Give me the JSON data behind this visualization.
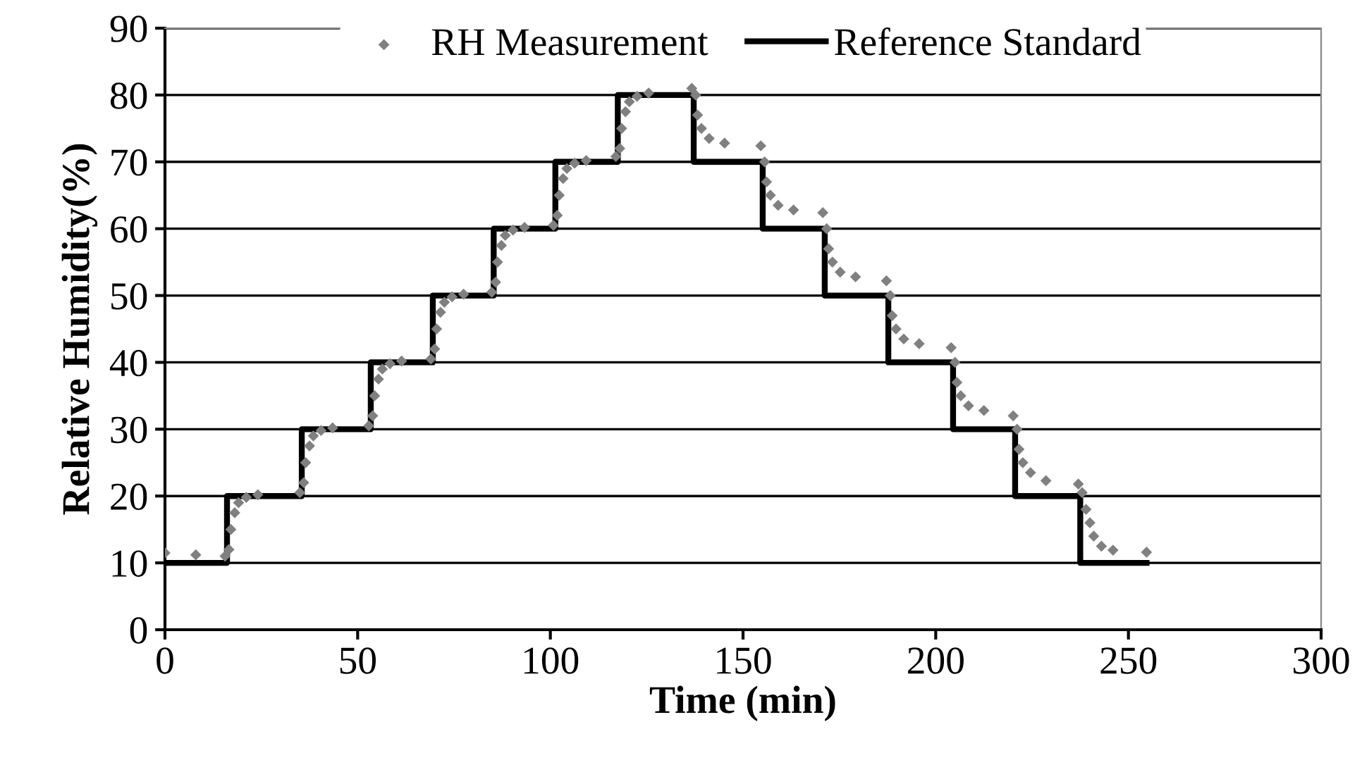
{
  "chart_data": {
    "type": "line",
    "xlabel": "Time (min)",
    "ylabel": "Relative Humidity(%)",
    "xlim": [
      0,
      300
    ],
    "xticks": [
      0,
      50,
      100,
      150,
      200,
      250,
      300
    ],
    "ylim": [
      0,
      90
    ],
    "yticks": [
      0,
      10,
      20,
      30,
      40,
      50,
      60,
      70,
      80,
      90
    ],
    "grid": "y",
    "legend": "top",
    "series": [
      {
        "name": "RH Measurement",
        "type": "scatter",
        "marker": "diamond",
        "color": "#808080",
        "x": [
          0,
          8,
          15.6,
          16.6,
          17.1,
          18.1,
          19.1,
          21.1,
          24.1,
          35,
          36,
          36.5,
          37.5,
          38.5,
          40.5,
          43.5,
          52.9,
          53.9,
          54.4,
          55.4,
          56.4,
          58.4,
          61.4,
          69,
          70,
          70.5,
          71.5,
          72.5,
          74.5,
          77.5,
          84.8,
          85.8,
          86.3,
          87.3,
          88.3,
          90.3,
          93.3,
          100.8,
          101.8,
          102.3,
          103.3,
          104.3,
          106.3,
          109.3,
          117,
          118,
          118.5,
          119.5,
          120.5,
          122.5,
          125.5,
          136.7,
          137.7,
          138.2,
          139.2,
          141.2,
          145.2,
          154.6,
          155.6,
          156.1,
          157.1,
          159.1,
          163.1,
          170.7,
          171.7,
          172.2,
          173.2,
          175.2,
          179.2,
          187.2,
          188.2,
          188.7,
          189.7,
          191.7,
          195.7,
          204,
          205,
          205.5,
          206.5,
          208.5,
          212.5,
          220.1,
          221.1,
          221.6,
          222.6,
          224.6,
          228.6,
          237,
          238,
          239,
          240,
          241,
          243,
          246,
          254.7
        ],
        "values": [
          11.5,
          11.2,
          11,
          12,
          15,
          17.5,
          19,
          19.8,
          20.2,
          20.5,
          22,
          25,
          27.5,
          29,
          29.8,
          30.2,
          30.5,
          32,
          35,
          37.5,
          39,
          39.8,
          40.2,
          40.5,
          42,
          45,
          47.5,
          49,
          49.8,
          50.2,
          50.5,
          52,
          55,
          57.5,
          59,
          59.8,
          60.2,
          60.5,
          62,
          65,
          67.5,
          69,
          69.8,
          70.2,
          70.8,
          72,
          75,
          77.5,
          79,
          79.8,
          80.3,
          81,
          80,
          77,
          75,
          73.5,
          72.8,
          72.4,
          70,
          67,
          65,
          63.5,
          62.8,
          62.4,
          60,
          57,
          55,
          53.5,
          52.8,
          52.2,
          50,
          47,
          45,
          43.5,
          42.8,
          42.2,
          40,
          37,
          35,
          33.5,
          32.8,
          32,
          30,
          27,
          25,
          23.5,
          22.3,
          21.8,
          20.5,
          18,
          16,
          14,
          12.5,
          11.9,
          11.6
        ]
      },
      {
        "name": "Reference Standard",
        "color": "#000000",
        "line_style": "solid",
        "x": [
          0,
          16.1,
          16.1,
          35.5,
          35.5,
          53.4,
          53.4,
          69.5,
          69.5,
          85.3,
          85.3,
          101.3,
          101.3,
          117.5,
          117.5,
          137.2,
          137.2,
          155.1,
          155.1,
          171.2,
          171.2,
          187.7,
          187.7,
          204.5,
          204.5,
          220.6,
          220.6,
          237.5,
          237.5,
          254.7
        ],
        "values": [
          10,
          10,
          20,
          20,
          30,
          30,
          40,
          40,
          50,
          50,
          60,
          60,
          70,
          70,
          80,
          80,
          70,
          70,
          60,
          60,
          50,
          50,
          40,
          40,
          30,
          30,
          20,
          20,
          10,
          10
        ]
      }
    ]
  }
}
